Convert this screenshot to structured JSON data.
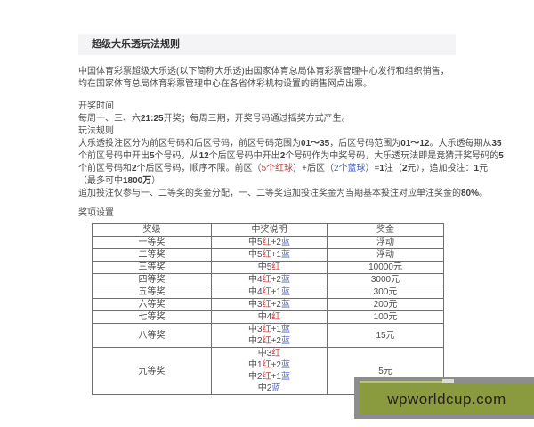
{
  "titlebar": {
    "title": "超级大乐透玩法规则"
  },
  "intro": {
    "text": "中国体育彩票超级大乐透(以下简称大乐透)由国家体育总局体育彩票管理中心发行和组织销售，均在国家体育总局体育彩票管理中心在各省体彩机构设置的销售网点出票。"
  },
  "draw_time": {
    "heading": "开奖时间",
    "lines": [
      [
        {
          "t": "每周一、三、六"
        },
        {
          "t": "21:25",
          "b": true
        },
        {
          "t": "开奖；每周三期，开奖号码通过摇奖方式产生。"
        }
      ]
    ]
  },
  "rules": {
    "heading": "玩法规则",
    "lines": [
      [
        {
          "t": "大乐透投注区分为前区号码和后区号码，前区号码范围为"
        },
        {
          "t": "01～35",
          "b": true
        },
        {
          "t": "，后区号码范围为"
        },
        {
          "t": "01～12",
          "b": true
        },
        {
          "t": "。大乐透每期从"
        },
        {
          "t": "35",
          "b": true
        }
      ],
      [
        {
          "t": "个前区号码中开出"
        },
        {
          "t": "5",
          "b": true
        },
        {
          "t": "个号码，从"
        },
        {
          "t": "12",
          "b": true
        },
        {
          "t": "个后区号码中开出"
        },
        {
          "t": "2",
          "b": true
        },
        {
          "t": "个号码作为中奖号码，大乐透玩法即是竞猜开奖号码的"
        },
        {
          "t": "5",
          "b": true
        }
      ],
      [
        {
          "t": "个前区号码和"
        },
        {
          "t": "2",
          "b": true
        },
        {
          "t": "个后区号码，顺序不限。前区（"
        },
        {
          "t": "5个红球",
          "c": "red"
        },
        {
          "t": "）+后区（"
        },
        {
          "t": "2个蓝球",
          "c": "blue"
        },
        {
          "t": "）="
        },
        {
          "t": "1",
          "b": true
        },
        {
          "t": "注（"
        },
        {
          "t": "2",
          "b": true
        },
        {
          "t": "元），追加投注："
        },
        {
          "t": "1",
          "b": true
        },
        {
          "t": "元"
        }
      ],
      [
        {
          "t": "（最多可中"
        },
        {
          "t": "1800万",
          "b": true
        },
        {
          "t": "）"
        }
      ],
      [
        {
          "t": "追加投注仅参与一、二等奖的奖金分配，一、二等奖追加投注奖金为当期基本投注对应单注奖金的"
        },
        {
          "t": "80%",
          "b": true
        },
        {
          "t": "。"
        }
      ]
    ]
  },
  "prize": {
    "heading": "奖项设置",
    "table": {
      "headers": [
        "奖级",
        "中奖说明",
        "奖金"
      ],
      "rows": [
        {
          "level": "一等奖",
          "desc": [
            "中5红+2蓝"
          ],
          "prize": "浮动"
        },
        {
          "level": "二等奖",
          "desc": [
            "中5红+1蓝"
          ],
          "prize": "浮动"
        },
        {
          "level": "三等奖",
          "desc": [
            "中5红"
          ],
          "prize": "10000元"
        },
        {
          "level": "四等奖",
          "desc": [
            "中4红+2蓝"
          ],
          "prize": "3000元"
        },
        {
          "level": "五等奖",
          "desc": [
            "中4红+1蓝"
          ],
          "prize": "300元"
        },
        {
          "level": "六等奖",
          "desc": [
            "中3红+2蓝"
          ],
          "prize": "200元"
        },
        {
          "level": "七等奖",
          "desc": [
            "中4红"
          ],
          "prize": "100元"
        },
        {
          "level": "八等奖",
          "desc": [
            "中3红+1蓝",
            "中2红+2蓝"
          ],
          "prize": "15元"
        },
        {
          "level": "九等奖",
          "desc": [
            "中3红",
            "中1红+2蓝",
            "中2红+1蓝",
            "中2蓝"
          ],
          "prize": "5元"
        }
      ]
    }
  },
  "watermark": {
    "text": "wpworldcup.com"
  },
  "colors": {
    "red": "#c9403c",
    "blue": "#4a62c9",
    "text": "#4d4d4d",
    "title_text": "#333333",
    "titlebar_bg": "#f4f4f6",
    "table_border": "#6e6e6e",
    "wm_olive": "#8a9a3f",
    "wm_olive_light": "#b9c47d",
    "wm_shadow": "#8d8d8d",
    "wm_text_color": "#2b1d20"
  }
}
